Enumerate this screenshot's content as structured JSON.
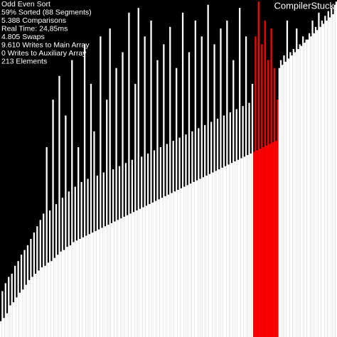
{
  "chart_data": {
    "type": "bar",
    "values": [
      10,
      29,
      12,
      34,
      15,
      38,
      20,
      40,
      22,
      45,
      25,
      48,
      28,
      52,
      30,
      55,
      33,
      58,
      36,
      62,
      38,
      66,
      40,
      70,
      42,
      74,
      44,
      78,
      45,
      120,
      47,
      80,
      48,
      150,
      50,
      84,
      52,
      165,
      54,
      88,
      55,
      140,
      57,
      92,
      58,
      175,
      60,
      95,
      61,
      120,
      62,
      98,
      63,
      185,
      64,
      100,
      65,
      160,
      66,
      130,
      67,
      102,
      68,
      190,
      69,
      104,
      70,
      150,
      71,
      195,
      72,
      106,
      73,
      170,
      74,
      108,
      75,
      180,
      76,
      110,
      77,
      205,
      78,
      112,
      79,
      160,
      80,
      208,
      81,
      114,
      82,
      190,
      83,
      116,
      84,
      200,
      85,
      118,
      86,
      175,
      87,
      120,
      88,
      185,
      89,
      122,
      90,
      196,
      91,
      124,
      92,
      170,
      93,
      126,
      94,
      205,
      95,
      128,
      96,
      180,
      97,
      130,
      98,
      200,
      99,
      132,
      100,
      190,
      101,
      134,
      102,
      210,
      103,
      136,
      104,
      185,
      105,
      138,
      106,
      195,
      107,
      140,
      108,
      200,
      109,
      142,
      110,
      175,
      111,
      144,
      112,
      208,
      113,
      146,
      114,
      190,
      115,
      148,
      116,
      160,
      117,
      190,
      118,
      212,
      119,
      185,
      120,
      200,
      121,
      175,
      122,
      195,
      123,
      170,
      124,
      150,
      170,
      175,
      172,
      178,
      174,
      200,
      176,
      180,
      178,
      182,
      180,
      195,
      182,
      185,
      184,
      190,
      186,
      188,
      188,
      192,
      190,
      200,
      192,
      196,
      194,
      205,
      196,
      200,
      198,
      203,
      200,
      206,
      202,
      208,
      204,
      210,
      212
    ],
    "color": "#ffffff",
    "highlight_color": "#ff0000",
    "highlighted": [
      160,
      161,
      162,
      163,
      164,
      165,
      166,
      167,
      168,
      169,
      170,
      171,
      172,
      173,
      174,
      175
    ],
    "ylim": [
      0,
      213
    ]
  },
  "overlay": {
    "stats": [
      "Odd Even Sort",
      "59% Sorted (88 Segments)",
      "5.388 Comparisons",
      "Real Time: 24,85ms",
      "4.805 Swaps",
      "9.610 Writes to Main Array",
      "0 Writes to Auxiliary Array",
      "213 Elements"
    ],
    "watermark": "CompilerStuck"
  }
}
